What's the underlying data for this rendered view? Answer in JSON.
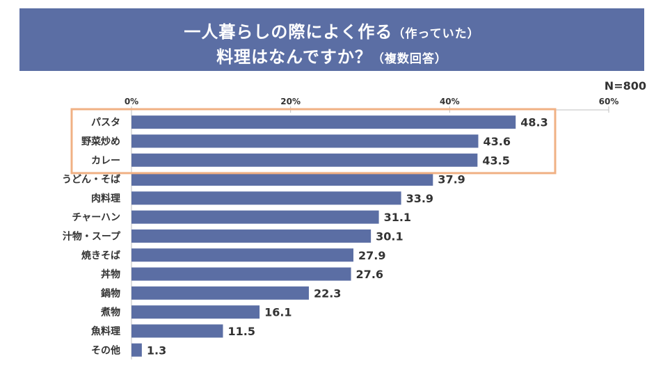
{
  "header": {
    "title_line1_main": "一人暮らしの際によく作る",
    "title_line1_note": "（作っていた）",
    "title_line2_main": "料理はなんですか？",
    "title_line2_note": "（複数回答）"
  },
  "sample_size": "N=800",
  "colors": {
    "header_bg": "#5b6ea4",
    "bar": "#5b6ea4",
    "highlight_border": "#f0b184"
  },
  "chart_data": {
    "type": "bar",
    "orientation": "horizontal",
    "title": "一人暮らしの際によく作る（作っていた）料理はなんですか？（複数回答）",
    "categories": [
      "パスタ",
      "野菜炒め",
      "カレー",
      "うどん・そば",
      "肉料理",
      "チャーハン",
      "汁物・スープ",
      "焼きそば",
      "丼物",
      "鍋物",
      "煮物",
      "魚料理",
      "その他"
    ],
    "values": [
      48.3,
      43.6,
      43.5,
      37.9,
      33.9,
      31.1,
      30.1,
      27.9,
      27.6,
      22.3,
      16.1,
      11.5,
      1.3
    ],
    "value_labels": [
      "48.3",
      "43.6",
      "43.5",
      "37.9",
      "33.9",
      "31.1",
      "30.1",
      "27.9",
      "27.6",
      "22.3",
      "16.1",
      "11.5",
      "1.3"
    ],
    "x_ticks": [
      0,
      20,
      40,
      60
    ],
    "x_tick_labels": [
      "0%",
      "20%",
      "40%",
      "60%"
    ],
    "xlim": [
      0,
      60
    ],
    "unit": "%",
    "highlighted_categories": [
      "パスタ",
      "野菜炒め",
      "カレー"
    ]
  }
}
